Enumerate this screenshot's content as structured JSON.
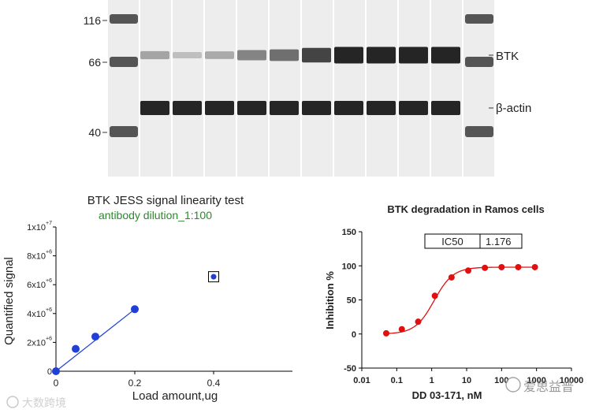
{
  "colors": {
    "blot_bg": "#eeeeee",
    "band": "#1a1a1a",
    "linear_series": "#1f3fd6",
    "dose_series": "#e01010",
    "dilution_text": "#2a8a2a"
  },
  "blot": {
    "mw_markers": [
      "116",
      "66",
      "40"
    ],
    "protein_labels": [
      "BTK",
      "β-actin"
    ],
    "btk_band_intensity": [
      0.35,
      0.22,
      0.32,
      0.5,
      0.6,
      0.8,
      0.95,
      0.95,
      0.95,
      0.95
    ],
    "actin_band_intensity": [
      0.95,
      0.95,
      0.95,
      0.95,
      0.95,
      0.95,
      0.95,
      0.95,
      0.95,
      0.95
    ]
  },
  "watermarks": {
    "left": "大数跨境",
    "right": "爱思益普"
  },
  "chart_data": [
    {
      "type": "scatter",
      "title": "BTK  JESS  signal  linearity  test",
      "subtitle": "antibody  dilution_1:100",
      "xlabel": "Load  amount,ug",
      "ylabel": "Quantified  signal",
      "xlim": [
        0,
        0.6
      ],
      "ylim": [
        0,
        10000000
      ],
      "x_ticks": [
        "0",
        "0.2",
        "0.4"
      ],
      "x_tick_values": [
        0,
        0.2,
        0.4
      ],
      "y_ticks": [
        {
          "value": 0,
          "mantissa": "0",
          "exp": ""
        },
        {
          "value": 2000000,
          "mantissa": "2x10",
          "exp": "+6"
        },
        {
          "value": 4000000,
          "mantissa": "4x10",
          "exp": "+6"
        },
        {
          "value": 6000000,
          "mantissa": "6x10",
          "exp": "+6"
        },
        {
          "value": 8000000,
          "mantissa": "8x10",
          "exp": "+6"
        },
        {
          "value": 10000000,
          "mantissa": "1x10",
          "exp": "+7"
        }
      ],
      "series": [
        {
          "name": "linear",
          "points": [
            [
              0,
              0
            ],
            [
              0.05,
              1550000
            ],
            [
              0.1,
              2400000
            ],
            [
              0.2,
              4300000
            ]
          ]
        },
        {
          "name": "excluded",
          "points": [
            [
              0.4,
              6550000
            ]
          ]
        }
      ],
      "fit_line": [
        [
          0,
          0
        ],
        [
          0.2,
          4300000
        ]
      ]
    },
    {
      "type": "line",
      "title": "BTK degradation in Ramos cells",
      "xlabel": "DD 03-171, nM",
      "ylabel": "Inhibition %",
      "xscale": "log",
      "xlim": [
        0.01,
        10000
      ],
      "ylim": [
        -50,
        150
      ],
      "x_ticks": [
        "0.01",
        "0.1",
        "1",
        "10",
        "100",
        "1000",
        "10000"
      ],
      "y_ticks": [
        "-50",
        "0",
        "50",
        "100",
        "150"
      ],
      "table": {
        "label": "IC50",
        "value": "1.176"
      },
      "points": [
        [
          0.05,
          1
        ],
        [
          0.14,
          7
        ],
        [
          0.41,
          18
        ],
        [
          1.23,
          56
        ],
        [
          3.7,
          83
        ],
        [
          11.1,
          93
        ],
        [
          33.3,
          97
        ],
        [
          100,
          98
        ],
        [
          300,
          98
        ],
        [
          900,
          98
        ]
      ],
      "curve": {
        "bottom": 0,
        "top": 98,
        "ic50": 1.176,
        "hill": 1.6
      }
    }
  ]
}
